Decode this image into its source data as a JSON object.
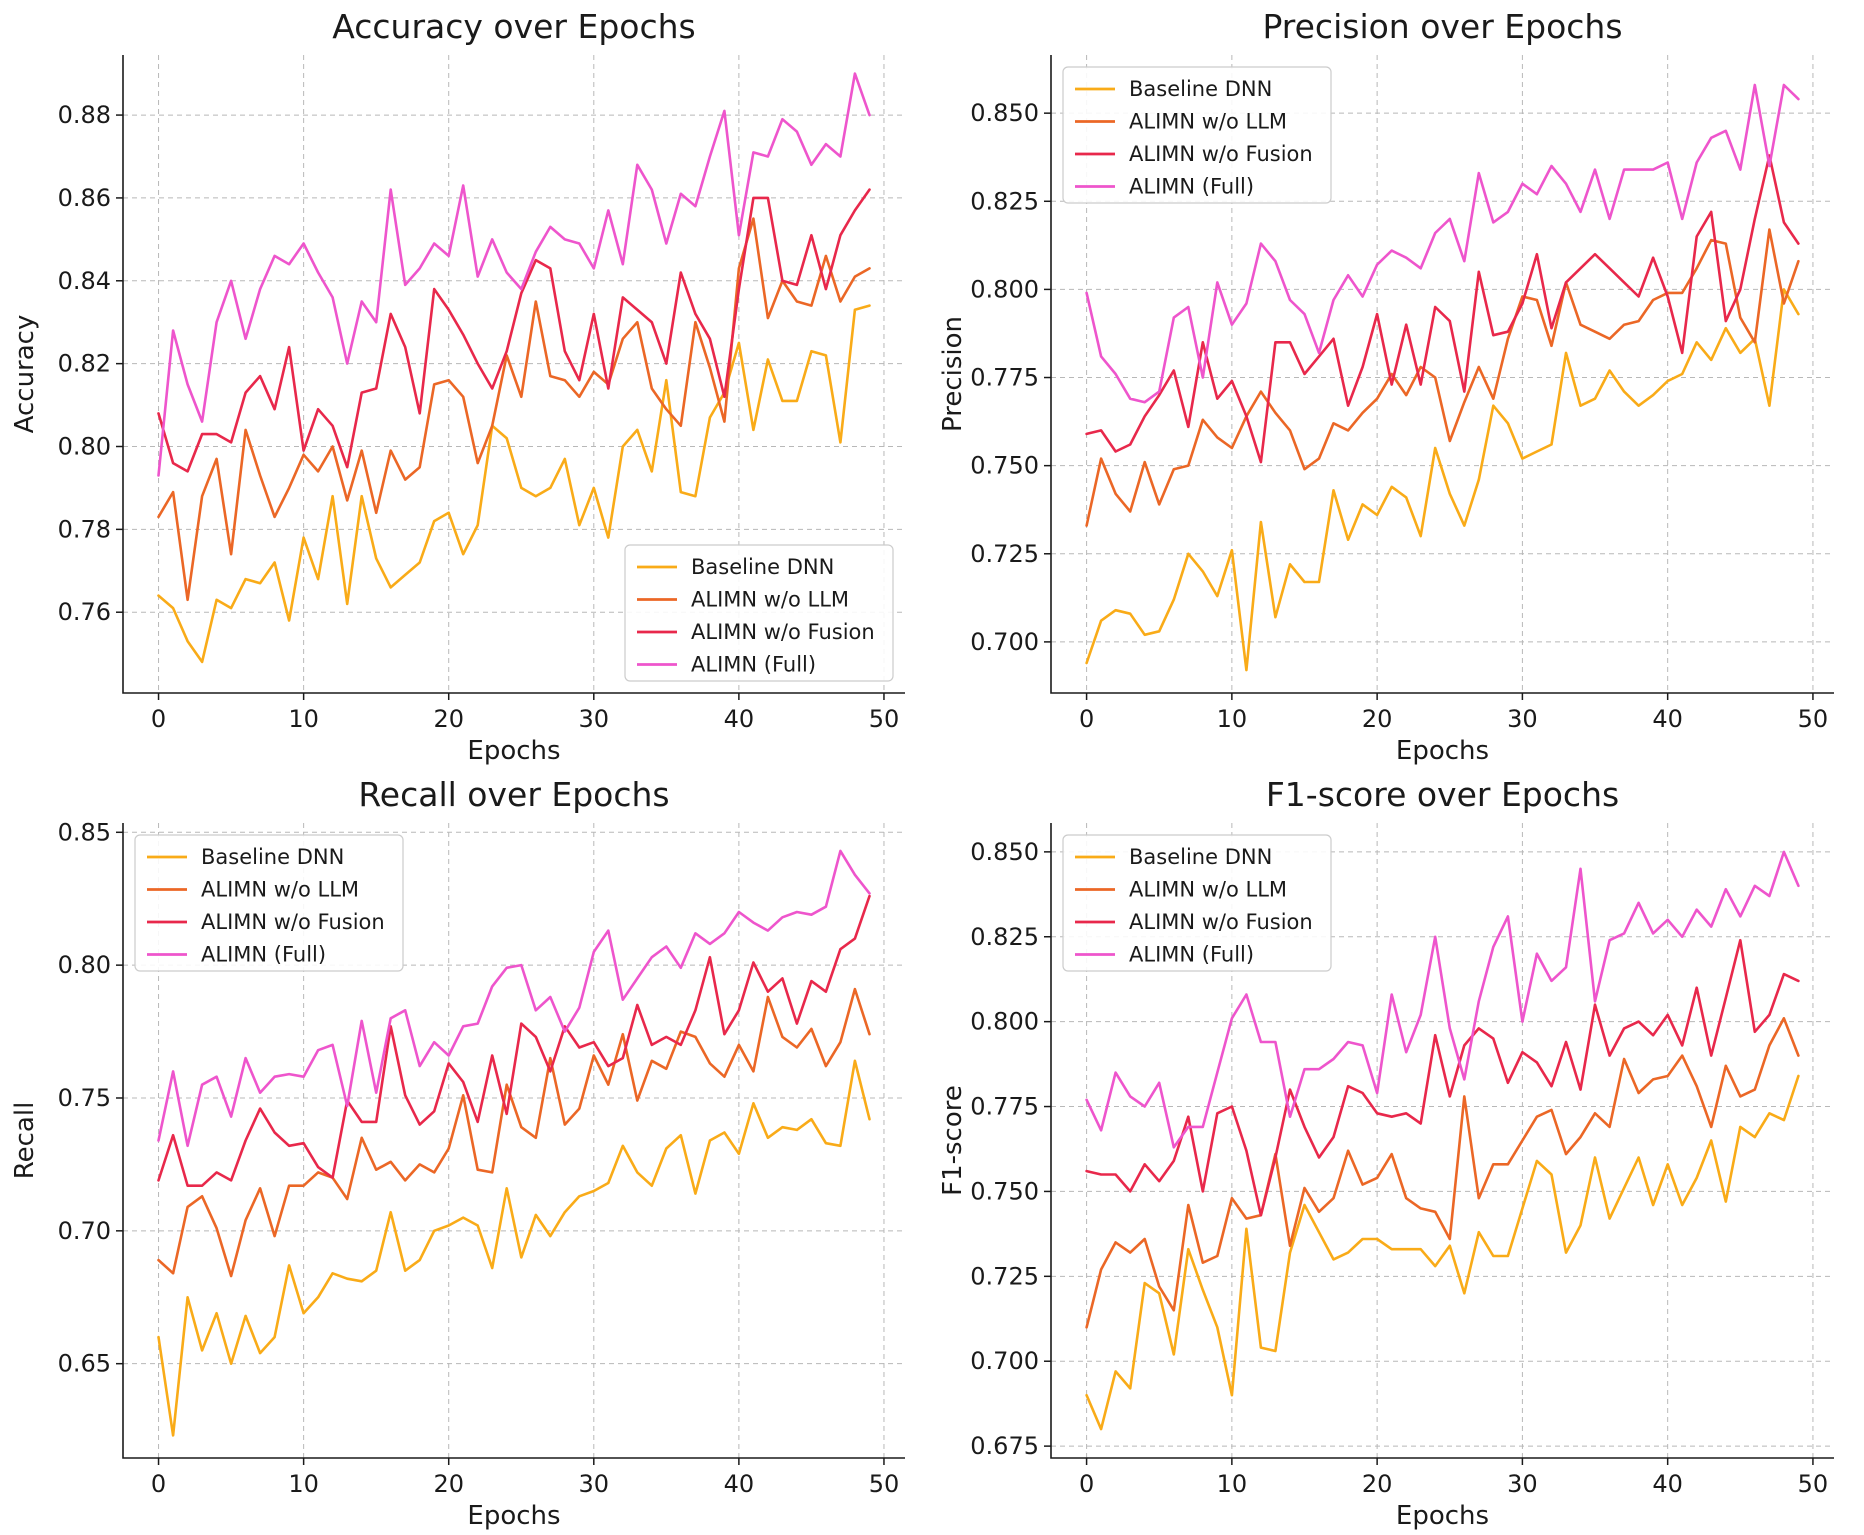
{
  "colors": {
    "baseline": "#f9ab18",
    "no_llm": "#eb6726",
    "no_fusion": "#e8284b",
    "full": "#ee55cc"
  },
  "chart_data": [
    {
      "type": "line",
      "title": "Accuracy over Epochs",
      "xlabel": "Epochs",
      "ylabel": "Accuracy",
      "xlim": [
        -2.45,
        51.45
      ],
      "ylim": [
        0.7405,
        0.8945
      ],
      "xticks": [
        0,
        10,
        20,
        30,
        40,
        50
      ],
      "yticks": [
        0.76,
        0.78,
        0.8,
        0.82,
        0.84,
        0.86,
        0.88
      ],
      "ytick_decimals": 2,
      "legend_position": "lower-right",
      "series": [
        {
          "name": "Baseline DNN",
          "color_key": "baseline",
          "values": [
            0.764,
            0.761,
            0.753,
            0.748,
            0.763,
            0.761,
            0.768,
            0.767,
            0.772,
            0.758,
            0.778,
            0.768,
            0.788,
            0.762,
            0.788,
            0.773,
            0.766,
            0.769,
            0.772,
            0.782,
            0.784,
            0.774,
            0.781,
            0.805,
            0.802,
            0.79,
            0.788,
            0.79,
            0.797,
            0.781,
            0.79,
            0.778,
            0.8,
            0.804,
            0.794,
            0.816,
            0.789,
            0.788,
            0.807,
            0.813,
            0.825,
            0.804,
            0.821,
            0.811,
            0.811,
            0.823,
            0.822,
            0.801,
            0.833,
            0.834
          ]
        },
        {
          "name": "ALIMN w/o LLM",
          "color_key": "no_llm",
          "values": [
            0.783,
            0.789,
            0.763,
            0.788,
            0.797,
            0.774,
            0.804,
            0.793,
            0.783,
            0.79,
            0.798,
            0.794,
            0.8,
            0.787,
            0.799,
            0.784,
            0.799,
            0.792,
            0.795,
            0.815,
            0.816,
            0.812,
            0.796,
            0.805,
            0.822,
            0.812,
            0.835,
            0.817,
            0.816,
            0.812,
            0.818,
            0.815,
            0.826,
            0.83,
            0.814,
            0.809,
            0.805,
            0.83,
            0.819,
            0.806,
            0.843,
            0.855,
            0.831,
            0.84,
            0.835,
            0.834,
            0.846,
            0.835,
            0.841,
            0.843
          ]
        },
        {
          "name": "ALIMN w/o Fusion",
          "color_key": "no_fusion",
          "values": [
            0.808,
            0.796,
            0.794,
            0.803,
            0.803,
            0.801,
            0.813,
            0.817,
            0.809,
            0.824,
            0.799,
            0.809,
            0.805,
            0.795,
            0.813,
            0.814,
            0.832,
            0.824,
            0.808,
            0.838,
            0.833,
            0.827,
            0.82,
            0.814,
            0.823,
            0.837,
            0.845,
            0.843,
            0.823,
            0.816,
            0.832,
            0.814,
            0.836,
            0.833,
            0.83,
            0.82,
            0.842,
            0.832,
            0.826,
            0.812,
            0.838,
            0.86,
            0.86,
            0.84,
            0.839,
            0.851,
            0.838,
            0.851,
            0.857,
            0.862
          ]
        },
        {
          "name": "ALIMN (Full)",
          "color_key": "full",
          "values": [
            0.793,
            0.828,
            0.815,
            0.806,
            0.83,
            0.84,
            0.826,
            0.838,
            0.846,
            0.844,
            0.849,
            0.842,
            0.836,
            0.82,
            0.835,
            0.83,
            0.862,
            0.839,
            0.843,
            0.849,
            0.846,
            0.863,
            0.841,
            0.85,
            0.842,
            0.838,
            0.847,
            0.853,
            0.85,
            0.849,
            0.843,
            0.857,
            0.844,
            0.868,
            0.862,
            0.849,
            0.861,
            0.858,
            0.87,
            0.881,
            0.851,
            0.871,
            0.87,
            0.879,
            0.876,
            0.868,
            0.873,
            0.87,
            0.89,
            0.88
          ]
        }
      ]
    },
    {
      "type": "line",
      "title": "Precision over Epochs",
      "xlabel": "Epochs",
      "ylabel": "Precision",
      "xlim": [
        -2.45,
        51.45
      ],
      "ylim": [
        0.6855,
        0.8665
      ],
      "xticks": [
        0,
        10,
        20,
        30,
        40,
        50
      ],
      "yticks": [
        0.7,
        0.725,
        0.75,
        0.775,
        0.8,
        0.825,
        0.85
      ],
      "ytick_decimals": 3,
      "legend_position": "upper-left",
      "series": [
        {
          "name": "Baseline DNN",
          "color_key": "baseline",
          "values": [
            0.694,
            0.706,
            0.709,
            0.708,
            0.702,
            0.703,
            0.712,
            0.725,
            0.72,
            0.713,
            0.726,
            0.692,
            0.734,
            0.707,
            0.722,
            0.717,
            0.717,
            0.743,
            0.729,
            0.739,
            0.736,
            0.744,
            0.741,
            0.73,
            0.755,
            0.742,
            0.733,
            0.746,
            0.767,
            0.762,
            0.752,
            0.754,
            0.756,
            0.782,
            0.767,
            0.769,
            0.777,
            0.771,
            0.767,
            0.77,
            0.774,
            0.776,
            0.785,
            0.78,
            0.789,
            0.782,
            0.786,
            0.767,
            0.8,
            0.793
          ]
        },
        {
          "name": "ALIMN w/o LLM",
          "color_key": "no_llm",
          "values": [
            0.733,
            0.752,
            0.742,
            0.737,
            0.751,
            0.739,
            0.749,
            0.75,
            0.763,
            0.758,
            0.755,
            0.764,
            0.771,
            0.765,
            0.76,
            0.749,
            0.752,
            0.762,
            0.76,
            0.765,
            0.769,
            0.776,
            0.77,
            0.778,
            0.775,
            0.757,
            0.768,
            0.778,
            0.769,
            0.786,
            0.798,
            0.797,
            0.784,
            0.802,
            0.79,
            0.788,
            0.786,
            0.79,
            0.791,
            0.797,
            0.799,
            0.799,
            0.806,
            0.814,
            0.813,
            0.792,
            0.785,
            0.817,
            0.796,
            0.808
          ]
        },
        {
          "name": "ALIMN w/o Fusion",
          "color_key": "no_fusion",
          "values": [
            0.759,
            0.76,
            0.754,
            0.756,
            0.764,
            0.77,
            0.777,
            0.761,
            0.785,
            0.769,
            0.774,
            0.764,
            0.751,
            0.785,
            0.785,
            0.776,
            0.781,
            0.786,
            0.767,
            0.778,
            0.793,
            0.773,
            0.79,
            0.773,
            0.795,
            0.791,
            0.771,
            0.805,
            0.787,
            0.788,
            0.796,
            0.81,
            0.789,
            0.802,
            0.806,
            0.81,
            0.806,
            0.802,
            0.798,
            0.809,
            0.798,
            0.782,
            0.815,
            0.822,
            0.791,
            0.8,
            0.82,
            0.838,
            0.819,
            0.813
          ]
        },
        {
          "name": "ALIMN (Full)",
          "color_key": "full",
          "values": [
            0.799,
            0.781,
            0.776,
            0.769,
            0.768,
            0.771,
            0.792,
            0.795,
            0.775,
            0.802,
            0.79,
            0.796,
            0.813,
            0.808,
            0.797,
            0.793,
            0.782,
            0.797,
            0.804,
            0.798,
            0.807,
            0.811,
            0.809,
            0.806,
            0.816,
            0.82,
            0.808,
            0.833,
            0.819,
            0.822,
            0.83,
            0.827,
            0.835,
            0.83,
            0.822,
            0.834,
            0.82,
            0.834,
            0.834,
            0.834,
            0.836,
            0.82,
            0.836,
            0.843,
            0.845,
            0.834,
            0.858,
            0.835,
            0.858,
            0.854
          ]
        }
      ]
    },
    {
      "type": "line",
      "title": "Recall over Epochs",
      "xlabel": "Epochs",
      "ylabel": "Recall",
      "xlim": [
        -2.45,
        51.45
      ],
      "ylim": [
        0.6145,
        0.8535
      ],
      "xticks": [
        0,
        10,
        20,
        30,
        40,
        50
      ],
      "yticks": [
        0.65,
        0.7,
        0.75,
        0.8,
        0.85
      ],
      "ytick_decimals": 2,
      "legend_position": "upper-left",
      "series": [
        {
          "name": "Baseline DNN",
          "color_key": "baseline",
          "values": [
            0.66,
            0.623,
            0.675,
            0.655,
            0.669,
            0.65,
            0.668,
            0.654,
            0.66,
            0.687,
            0.669,
            0.675,
            0.684,
            0.682,
            0.681,
            0.685,
            0.707,
            0.685,
            0.689,
            0.7,
            0.702,
            0.705,
            0.702,
            0.686,
            0.716,
            0.69,
            0.706,
            0.698,
            0.707,
            0.713,
            0.715,
            0.718,
            0.732,
            0.722,
            0.717,
            0.731,
            0.736,
            0.714,
            0.734,
            0.737,
            0.729,
            0.748,
            0.735,
            0.739,
            0.738,
            0.742,
            0.733,
            0.732,
            0.764,
            0.742
          ]
        },
        {
          "name": "ALIMN w/o LLM",
          "color_key": "no_llm",
          "values": [
            0.689,
            0.684,
            0.709,
            0.713,
            0.701,
            0.683,
            0.704,
            0.716,
            0.698,
            0.717,
            0.717,
            0.722,
            0.72,
            0.712,
            0.735,
            0.723,
            0.726,
            0.719,
            0.725,
            0.722,
            0.731,
            0.751,
            0.723,
            0.722,
            0.755,
            0.739,
            0.735,
            0.765,
            0.74,
            0.746,
            0.766,
            0.755,
            0.774,
            0.749,
            0.764,
            0.761,
            0.775,
            0.773,
            0.763,
            0.758,
            0.77,
            0.76,
            0.788,
            0.773,
            0.769,
            0.776,
            0.762,
            0.771,
            0.791,
            0.774
          ]
        },
        {
          "name": "ALIMN w/o Fusion",
          "color_key": "no_fusion",
          "values": [
            0.719,
            0.736,
            0.717,
            0.717,
            0.722,
            0.719,
            0.734,
            0.746,
            0.737,
            0.732,
            0.733,
            0.724,
            0.72,
            0.749,
            0.741,
            0.741,
            0.777,
            0.751,
            0.74,
            0.745,
            0.763,
            0.756,
            0.741,
            0.766,
            0.744,
            0.778,
            0.773,
            0.76,
            0.777,
            0.769,
            0.771,
            0.762,
            0.765,
            0.785,
            0.77,
            0.773,
            0.77,
            0.783,
            0.803,
            0.774,
            0.783,
            0.801,
            0.79,
            0.795,
            0.778,
            0.794,
            0.79,
            0.806,
            0.81,
            0.826
          ]
        },
        {
          "name": "ALIMN (Full)",
          "color_key": "full",
          "values": [
            0.734,
            0.76,
            0.732,
            0.755,
            0.758,
            0.743,
            0.765,
            0.752,
            0.758,
            0.759,
            0.758,
            0.768,
            0.77,
            0.747,
            0.779,
            0.752,
            0.78,
            0.783,
            0.762,
            0.771,
            0.766,
            0.777,
            0.778,
            0.792,
            0.799,
            0.8,
            0.783,
            0.788,
            0.775,
            0.784,
            0.805,
            0.813,
            0.787,
            0.795,
            0.803,
            0.807,
            0.799,
            0.812,
            0.808,
            0.812,
            0.82,
            0.816,
            0.813,
            0.818,
            0.82,
            0.819,
            0.822,
            0.843,
            0.834,
            0.827
          ]
        }
      ]
    },
    {
      "type": "line",
      "title": "F1-score over Epochs",
      "xlabel": "Epochs",
      "ylabel": "F1-score",
      "xlim": [
        -2.45,
        51.45
      ],
      "ylim": [
        0.6715,
        0.8585
      ],
      "xticks": [
        0,
        10,
        20,
        30,
        40,
        50
      ],
      "yticks": [
        0.675,
        0.7,
        0.725,
        0.75,
        0.775,
        0.8,
        0.825,
        0.85
      ],
      "ytick_decimals": 3,
      "legend_position": "upper-left",
      "series": [
        {
          "name": "Baseline DNN",
          "color_key": "baseline",
          "values": [
            0.69,
            0.68,
            0.697,
            0.692,
            0.723,
            0.72,
            0.702,
            0.733,
            0.721,
            0.71,
            0.69,
            0.739,
            0.704,
            0.703,
            0.732,
            0.746,
            0.738,
            0.73,
            0.732,
            0.736,
            0.736,
            0.733,
            0.733,
            0.733,
            0.728,
            0.734,
            0.72,
            0.738,
            0.731,
            0.731,
            0.745,
            0.759,
            0.755,
            0.732,
            0.74,
            0.76,
            0.742,
            0.751,
            0.76,
            0.746,
            0.758,
            0.746,
            0.754,
            0.765,
            0.747,
            0.769,
            0.766,
            0.773,
            0.771,
            0.784
          ]
        },
        {
          "name": "ALIMN w/o LLM",
          "color_key": "no_llm",
          "values": [
            0.71,
            0.727,
            0.735,
            0.732,
            0.736,
            0.722,
            0.715,
            0.746,
            0.729,
            0.731,
            0.748,
            0.742,
            0.743,
            0.761,
            0.734,
            0.751,
            0.744,
            0.748,
            0.762,
            0.752,
            0.754,
            0.761,
            0.748,
            0.745,
            0.744,
            0.736,
            0.778,
            0.748,
            0.758,
            0.758,
            0.765,
            0.772,
            0.774,
            0.761,
            0.766,
            0.773,
            0.769,
            0.789,
            0.779,
            0.783,
            0.784,
            0.79,
            0.781,
            0.769,
            0.787,
            0.778,
            0.78,
            0.793,
            0.801,
            0.79
          ]
        },
        {
          "name": "ALIMN w/o Fusion",
          "color_key": "no_fusion",
          "values": [
            0.756,
            0.755,
            0.755,
            0.75,
            0.758,
            0.753,
            0.759,
            0.772,
            0.75,
            0.773,
            0.775,
            0.762,
            0.743,
            0.76,
            0.78,
            0.769,
            0.76,
            0.766,
            0.781,
            0.779,
            0.773,
            0.772,
            0.773,
            0.77,
            0.796,
            0.778,
            0.793,
            0.798,
            0.795,
            0.782,
            0.791,
            0.788,
            0.781,
            0.794,
            0.78,
            0.805,
            0.79,
            0.798,
            0.8,
            0.796,
            0.802,
            0.793,
            0.81,
            0.79,
            0.807,
            0.824,
            0.797,
            0.802,
            0.814,
            0.812
          ]
        },
        {
          "name": "ALIMN (Full)",
          "color_key": "full",
          "values": [
            0.777,
            0.768,
            0.785,
            0.778,
            0.775,
            0.782,
            0.763,
            0.769,
            0.769,
            0.785,
            0.801,
            0.808,
            0.794,
            0.794,
            0.772,
            0.786,
            0.786,
            0.789,
            0.794,
            0.793,
            0.779,
            0.808,
            0.791,
            0.802,
            0.825,
            0.798,
            0.783,
            0.806,
            0.822,
            0.831,
            0.8,
            0.82,
            0.812,
            0.816,
            0.845,
            0.806,
            0.824,
            0.826,
            0.835,
            0.826,
            0.83,
            0.825,
            0.833,
            0.828,
            0.839,
            0.831,
            0.84,
            0.837,
            0.85,
            0.84
          ]
        }
      ]
    }
  ]
}
